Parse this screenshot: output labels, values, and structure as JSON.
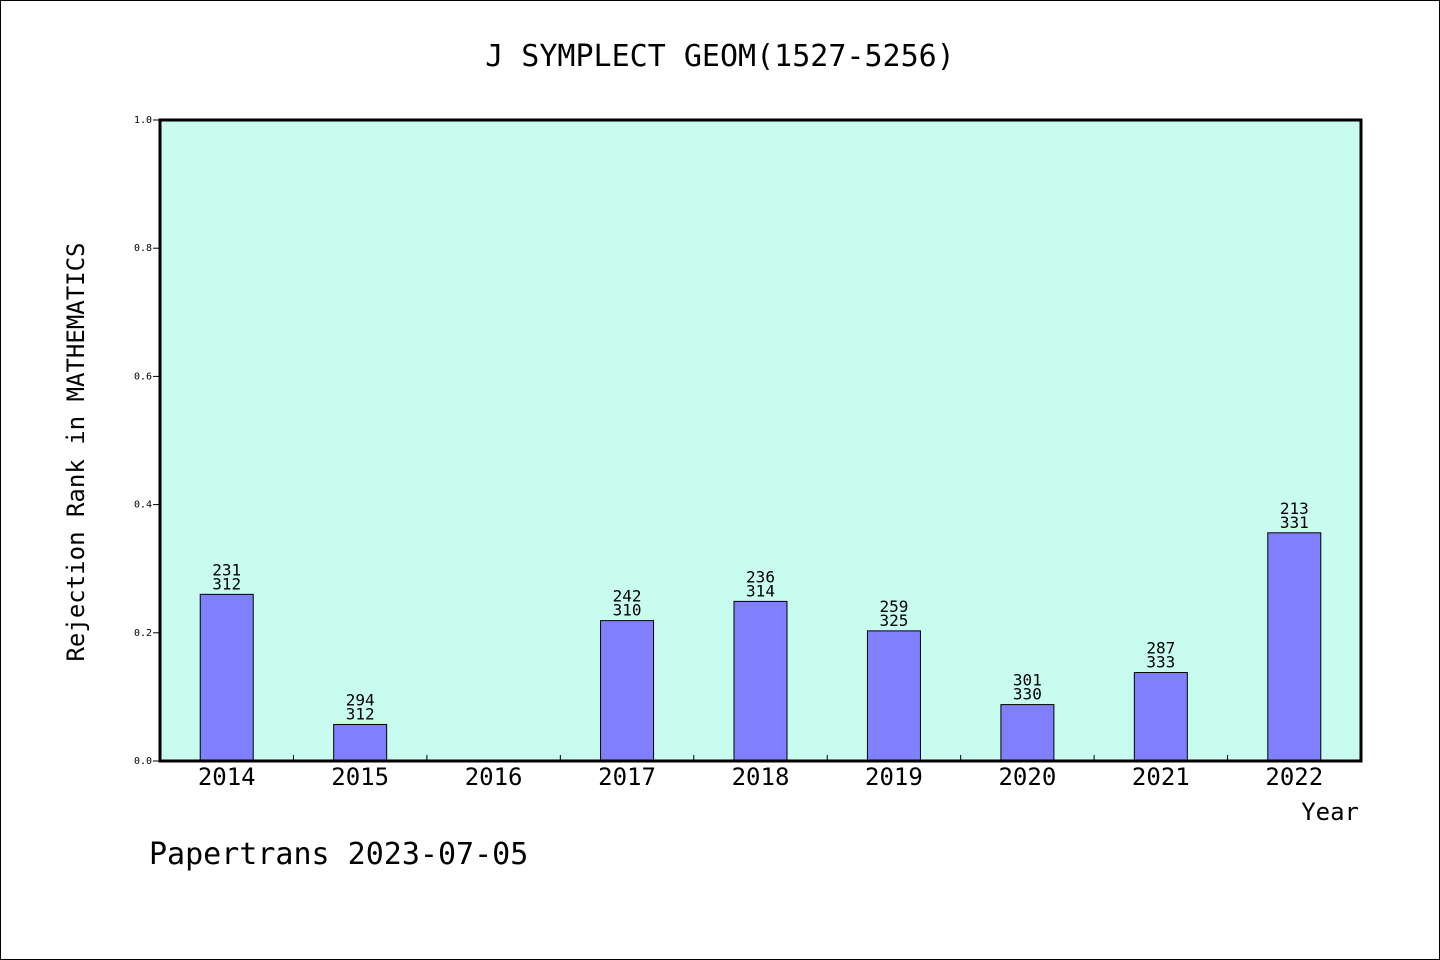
{
  "chart_data": {
    "type": "bar",
    "title": "J SYMPLECT GEOM(1527-5256)",
    "xlabel": "Year",
    "ylabel": "Rejection Rank in MATHEMATICS",
    "ylim": [
      0,
      1.0
    ],
    "yticks": [
      "0.0",
      "0.2",
      "0.4",
      "0.6",
      "0.8",
      "1.0"
    ],
    "categories": [
      "2014",
      "2015",
      "2016",
      "2017",
      "2018",
      "2019",
      "2020",
      "2021",
      "2022"
    ],
    "values": [
      0.26,
      0.057,
      null,
      0.219,
      0.249,
      0.203,
      0.088,
      0.138,
      0.356
    ],
    "labels": [
      [
        "231",
        "312"
      ],
      [
        "294",
        "312"
      ],
      null,
      [
        "242",
        "310"
      ],
      [
        "236",
        "314"
      ],
      [
        "259",
        "325"
      ],
      [
        "301",
        "330"
      ],
      [
        "287",
        "333"
      ],
      [
        "213",
        "331"
      ]
    ],
    "colors": {
      "plot_bg": "#c8fcee",
      "bar": "#8080ff",
      "axis": "#000000"
    }
  },
  "footer": {
    "text": "Papertrans 2023-07-05"
  }
}
